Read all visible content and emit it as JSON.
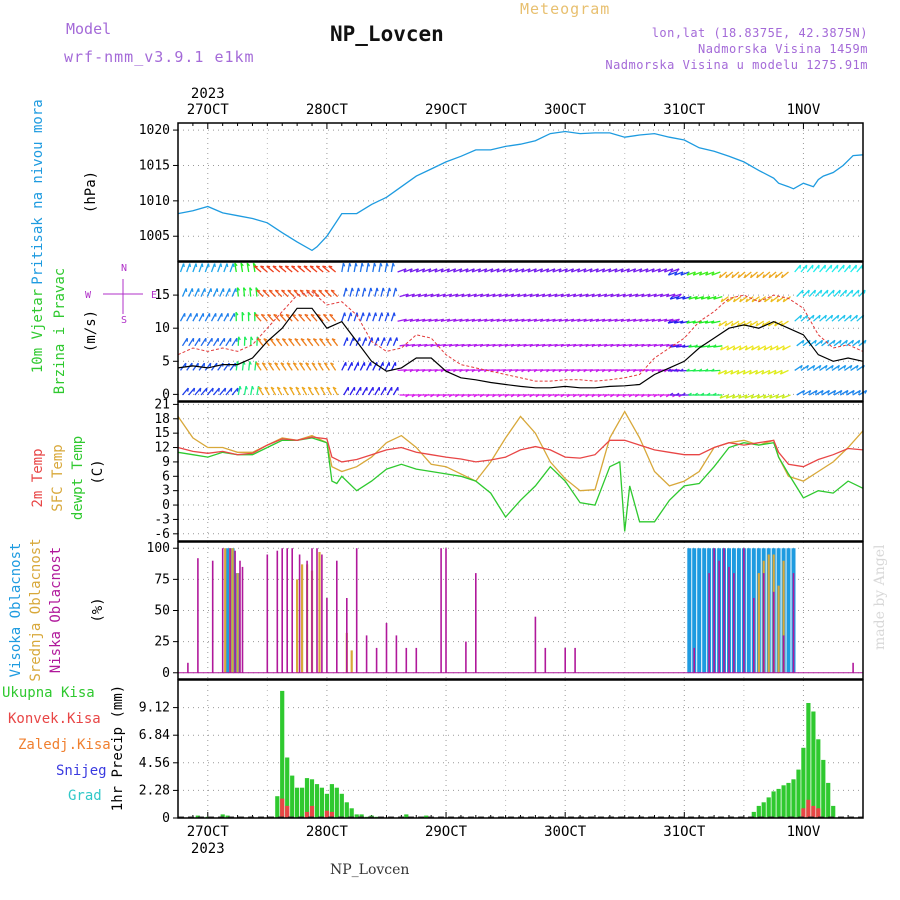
{
  "header": {
    "model_label": "Model",
    "model_value": "wrf-nmm_v3.9.1 e1km",
    "station_title": "NP_Lovcen",
    "meteogram_label": "Meteogram",
    "lonlat": "lon,lat (18.8375E, 42.3875N)",
    "altitude": "Nadmorska Visina 1459m",
    "model_altitude": "Nadmorska Visina u modelu 1275.91m",
    "watermark": "made by Angel",
    "footer_name": "NP_Lovcen"
  },
  "time_axis": {
    "year": "2023",
    "day_labels": [
      "27OCT",
      "28OCT",
      "29OCT",
      "30OCT",
      "31OCT",
      "1NOV"
    ],
    "start_hour": 0,
    "end_hour": 138,
    "day_hours": [
      6,
      30,
      54,
      78,
      102,
      126
    ]
  },
  "colors": {
    "pressure": "#1e9be0",
    "speed": "#000000",
    "gust": "#e23b3b",
    "t2m": "#e84646",
    "sfc": "#d8a83a",
    "dew": "#2fc92f",
    "high_cloud": "#1e9be0",
    "mid_cloud": "#d8a83a",
    "low_cloud": "#b0189b",
    "precip_total": "#2fc92f",
    "precip_conv": "#e84646",
    "label_model": "#a46ad8",
    "label_meteogram": "#e8c070",
    "label_pressure": "#1e9be0",
    "label_wind": "#2fc92f",
    "label_direction": "#b030c8"
  },
  "chart_data": [
    {
      "type": "line",
      "name": "pressure",
      "ylabel_colored": "Pritisak na nivou mora",
      "unit": "(hPa)",
      "ylim": [
        1001.5,
        1021
      ],
      "yticks": [
        "1005",
        "1010",
        "1015",
        "1020"
      ],
      "ytick_values": [
        1005,
        1010,
        1015,
        1020
      ],
      "series": [
        {
          "x": [
            0,
            3,
            6,
            9,
            12,
            15,
            18,
            21,
            24,
            27,
            28,
            30,
            33,
            36,
            39,
            42,
            45,
            48,
            51,
            54,
            57,
            60,
            63,
            66,
            69,
            72,
            75,
            78,
            81,
            84,
            87,
            90,
            93,
            96,
            99,
            102,
            105,
            108,
            111,
            114,
            117,
            120,
            121,
            123,
            124,
            126,
            128,
            129,
            130,
            132,
            134,
            136,
            138
          ],
          "y": [
            1008.2,
            1008.6,
            1009.2,
            1008.3,
            1007.9,
            1007.5,
            1006.9,
            1005.5,
            1004.2,
            1003.0,
            1003.5,
            1005.0,
            1008.2,
            1008.2,
            1009.5,
            1010.5,
            1012.0,
            1013.5,
            1014.5,
            1015.5,
            1016.3,
            1017.2,
            1017.2,
            1017.7,
            1018.0,
            1018.5,
            1019.5,
            1019.8,
            1019.5,
            1019.6,
            1019.6,
            1019.0,
            1019.3,
            1019.5,
            1019.0,
            1018.6,
            1017.5,
            1017.0,
            1016.3,
            1015.5,
            1014.3,
            1013.2,
            1012.5,
            1012.0,
            1011.7,
            1012.5,
            1012.0,
            1013.0,
            1013.5,
            1014.0,
            1015.0,
            1016.4,
            1016.5
          ]
        }
      ]
    },
    {
      "type": "line",
      "name": "wind",
      "ylabel_colored_1": "10m Vjetar",
      "ylabel_colored_2": "Brzina i Pravac",
      "unit": "(m/s)",
      "ylim": [
        -1,
        20
      ],
      "yticks": [
        "0",
        "5",
        "10",
        "15"
      ],
      "ytick_values": [
        0,
        5,
        10,
        15
      ],
      "direction_labels": {
        "north": "N",
        "east": "E",
        "south": "S",
        "west": "W"
      },
      "series": [
        {
          "name": "wind speed",
          "x": [
            0,
            3,
            6,
            9,
            12,
            15,
            18,
            21,
            24,
            27,
            30,
            33,
            36,
            39,
            42,
            45,
            48,
            51,
            54,
            57,
            60,
            63,
            66,
            69,
            72,
            75,
            78,
            81,
            84,
            87,
            90,
            93,
            96,
            99,
            102,
            105,
            108,
            111,
            114,
            117,
            120,
            123,
            126,
            129,
            132,
            135,
            138
          ],
          "y": [
            4,
            4.3,
            4,
            4.5,
            4.5,
            5.5,
            8,
            10,
            13,
            13,
            10,
            11,
            8,
            5,
            3.5,
            4,
            5.5,
            5.5,
            3.5,
            2.5,
            2.2,
            1.8,
            1.5,
            1.2,
            1.0,
            1.0,
            1.2,
            1.0,
            1.0,
            1.2,
            1.3,
            1.5,
            3.0,
            4.0,
            5.0,
            7.0,
            8.5,
            10,
            10.5,
            10,
            11,
            10,
            9,
            6,
            5,
            5.5,
            5
          ]
        },
        {
          "name": "gust",
          "x": [
            0,
            3,
            6,
            9,
            12,
            15,
            18,
            21,
            24,
            27,
            30,
            33,
            36,
            39,
            42,
            45,
            48,
            51,
            54,
            57,
            60,
            63,
            66,
            69,
            72,
            75,
            78,
            81,
            84,
            87,
            90,
            93,
            96,
            99,
            102,
            105,
            108,
            111,
            114,
            117,
            120,
            123,
            126,
            129,
            132,
            135,
            138
          ],
          "y": [
            6,
            7,
            6.5,
            7,
            6.5,
            7.5,
            10,
            12.5,
            15,
            15.5,
            13.5,
            14,
            12,
            8,
            6.5,
            7,
            9,
            8.5,
            6,
            4.5,
            4,
            3.5,
            3,
            2.5,
            2,
            2,
            2.2,
            2.2,
            2,
            2.2,
            2.5,
            3,
            5.5,
            7,
            8.5,
            11,
            12.5,
            14.5,
            15,
            14,
            15,
            14.5,
            13,
            9,
            7,
            7.5,
            6.5
          ]
        }
      ]
    },
    {
      "type": "line",
      "name": "temperature",
      "ylabel_t2m": "2m Temp",
      "ylabel_sfc": "SFC Temp",
      "ylabel_dew": "dewpt Temp",
      "unit": "(C)",
      "ylim": [
        -7.5,
        21.5
      ],
      "yticks": [
        "-6",
        "-3",
        "0",
        "3",
        "6",
        "9",
        "12",
        "15",
        "18",
        "21"
      ],
      "ytick_values": [
        -6,
        -3,
        0,
        3,
        6,
        9,
        12,
        15,
        18,
        21
      ],
      "series": [
        {
          "name": "2m Temp",
          "x": [
            0,
            3,
            6,
            9,
            12,
            15,
            18,
            21,
            24,
            27,
            30,
            31,
            33,
            36,
            39,
            42,
            45,
            48,
            51,
            54,
            57,
            60,
            63,
            66,
            69,
            72,
            75,
            78,
            81,
            84,
            87,
            90,
            93,
            96,
            99,
            102,
            105,
            108,
            111,
            114,
            117,
            120,
            121,
            123,
            126,
            129,
            132,
            135,
            138
          ],
          "y": [
            12,
            11.2,
            10.8,
            11.2,
            10.5,
            10.8,
            12.5,
            13.8,
            13.5,
            14.2,
            13.8,
            10,
            9,
            9.5,
            10.5,
            11.5,
            12,
            11,
            10.5,
            10,
            9.6,
            9,
            9.4,
            10,
            11.5,
            12.2,
            11.5,
            10,
            9.8,
            10.5,
            13.5,
            13.5,
            12.5,
            11.5,
            11,
            10.5,
            10.5,
            12,
            13,
            12.5,
            13,
            13.5,
            11,
            8.5,
            8,
            9.5,
            10.5,
            11.8,
            11.5
          ]
        },
        {
          "name": "SFC Temp",
          "x": [
            0,
            3,
            6,
            9,
            12,
            15,
            18,
            21,
            24,
            27,
            30,
            31,
            33,
            36,
            39,
            42,
            45,
            48,
            51,
            54,
            57,
            60,
            63,
            66,
            69,
            72,
            75,
            78,
            81,
            84,
            87,
            90,
            93,
            96,
            99,
            102,
            105,
            108,
            111,
            114,
            117,
            120,
            121,
            123,
            126,
            129,
            132,
            135,
            138
          ],
          "y": [
            18.5,
            14,
            12,
            12,
            11,
            11,
            12.5,
            14,
            13.5,
            14.5,
            13,
            8,
            7,
            8,
            10,
            13,
            14.5,
            12,
            8.5,
            8,
            6.5,
            5,
            9,
            14,
            18.5,
            15,
            9,
            5.5,
            3,
            3.2,
            14,
            19.5,
            14,
            7,
            4,
            5,
            7,
            12,
            13,
            13.5,
            12.5,
            13.5,
            10,
            6,
            5,
            7,
            9,
            12,
            15.5
          ]
        },
        {
          "name": "dewpt Temp",
          "x": [
            0,
            3,
            6,
            9,
            12,
            15,
            18,
            21,
            24,
            27,
            30,
            31,
            32,
            33,
            36,
            39,
            42,
            45,
            48,
            51,
            54,
            57,
            60,
            63,
            66,
            69,
            72,
            75,
            78,
            81,
            84,
            87,
            89,
            90,
            91,
            93,
            96,
            99,
            102,
            105,
            108,
            111,
            114,
            117,
            120,
            121,
            123,
            126,
            129,
            132,
            135,
            138
          ],
          "y": [
            11,
            10.5,
            10,
            11,
            10.5,
            10.5,
            12,
            13.5,
            13.5,
            14,
            13,
            5,
            4.5,
            6,
            3,
            5,
            7.5,
            8.5,
            7.5,
            7,
            6.5,
            6,
            5,
            2.5,
            -2.5,
            1,
            4,
            8,
            5,
            0.5,
            0,
            8,
            9,
            -5.5,
            4,
            -3.5,
            -3.5,
            1,
            4,
            4.5,
            8,
            12,
            13,
            12.5,
            13,
            10,
            6.5,
            1.5,
            3,
            2.5,
            5,
            3.5
          ]
        }
      ]
    },
    {
      "type": "bar",
      "name": "clouds",
      "ylabel_high": "Visoka Oblacnost",
      "ylabel_mid": "Srednja Oblacnost",
      "ylabel_low": "Niska Oblacnost",
      "unit": "(%)",
      "ylim": [
        -5,
        105
      ],
      "yticks": [
        "0",
        "25",
        "50",
        "75",
        "100"
      ],
      "ytick_values": [
        0,
        25,
        50,
        75,
        100
      ],
      "series": [
        {
          "name": "low",
          "x": [
            2,
            4,
            7,
            9,
            10.5,
            11.5,
            12.5,
            13,
            18,
            20,
            21,
            22,
            23,
            24.5,
            26,
            27,
            28,
            29,
            30,
            32,
            34,
            36,
            38,
            40,
            42,
            44,
            46,
            48,
            53,
            54,
            58,
            60,
            72,
            74,
            78,
            80,
            104,
            107,
            108,
            109,
            110,
            111,
            112,
            114,
            116,
            118,
            120,
            122,
            124,
            136
          ],
          "y": [
            8,
            92,
            90,
            100,
            100,
            98,
            90,
            85,
            95,
            98,
            100,
            100,
            100,
            95,
            90,
            100,
            100,
            95,
            60,
            90,
            60,
            100,
            30,
            20,
            40,
            30,
            20,
            20,
            100,
            100,
            25,
            80,
            45,
            20,
            20,
            20,
            20,
            80,
            100,
            90,
            100,
            85,
            80,
            100,
            60,
            80,
            65,
            30,
            80,
            8
          ]
        },
        {
          "name": "mid",
          "x": [
            9.5,
            10.5,
            11,
            12,
            24,
            25,
            26,
            27,
            28.5,
            34,
            35,
            117,
            118,
            119,
            120,
            121,
            122
          ],
          "y": [
            100,
            100,
            100,
            80,
            75,
            87,
            87,
            82,
            97,
            32,
            18,
            80,
            90,
            95,
            95,
            70,
            90
          ]
        },
        {
          "name": "high",
          "x": [
            10,
            11,
            12,
            103,
            104,
            105,
            106,
            107,
            108,
            109,
            110,
            111,
            112,
            113,
            114,
            115,
            116,
            117,
            118,
            119,
            120,
            121,
            122,
            123,
            124
          ],
          "y": [
            100,
            100,
            80,
            100,
            100,
            100,
            100,
            100,
            100,
            100,
            100,
            100,
            100,
            100,
            100,
            100,
            100,
            100,
            100,
            100,
            100,
            100,
            100,
            100,
            100
          ]
        }
      ]
    },
    {
      "type": "bar",
      "name": "precipitation",
      "legend_total": "Ukupna Kisa",
      "legend_conv": "Konvek.Kisa",
      "legend_freeze": "Zaledj.Kisa",
      "legend_snow": "Snijeg",
      "legend_hail": "Grad",
      "ylabel": "1hr Precip (mm)",
      "ylim": [
        0,
        11.4
      ],
      "yticks": [
        "0",
        "2.28",
        "4.56",
        "6.84",
        "9.12"
      ],
      "ytick_values": [
        0,
        2.28,
        4.56,
        6.84,
        9.12
      ],
      "series": [
        {
          "name": "total",
          "x": [
            4,
            6,
            9,
            10,
            20,
            21,
            22,
            23,
            24,
            25,
            26,
            27,
            28,
            29,
            30,
            31,
            32,
            33,
            34,
            35,
            36,
            37,
            38,
            39,
            40,
            46,
            50,
            116,
            117,
            118,
            119,
            120,
            121,
            122,
            123,
            124,
            125,
            126,
            127,
            128,
            129,
            130,
            131,
            132
          ],
          "y": [
            0.2,
            0.1,
            0.3,
            0.2,
            1.8,
            10.5,
            5,
            3.5,
            2.5,
            2.5,
            3.3,
            3.2,
            2.8,
            2.5,
            2.0,
            2.8,
            2.5,
            2.0,
            1.3,
            0.8,
            0.3,
            0.3,
            0.1,
            0.2,
            0.1,
            0.3,
            0.2,
            0.5,
            1.0,
            1.3,
            1.7,
            2.2,
            2.4,
            2.7,
            2.9,
            3.2,
            4.0,
            5.8,
            9.5,
            8.8,
            6.5,
            4.8,
            2.9,
            1.0
          ]
        },
        {
          "name": "convective",
          "x": [
            21,
            22,
            26,
            27,
            30,
            31,
            126,
            127,
            128,
            129
          ],
          "y": [
            1.6,
            1.0,
            0.5,
            1.0,
            0.6,
            0.5,
            0.8,
            1.5,
            1.0,
            0.8
          ]
        }
      ]
    }
  ]
}
